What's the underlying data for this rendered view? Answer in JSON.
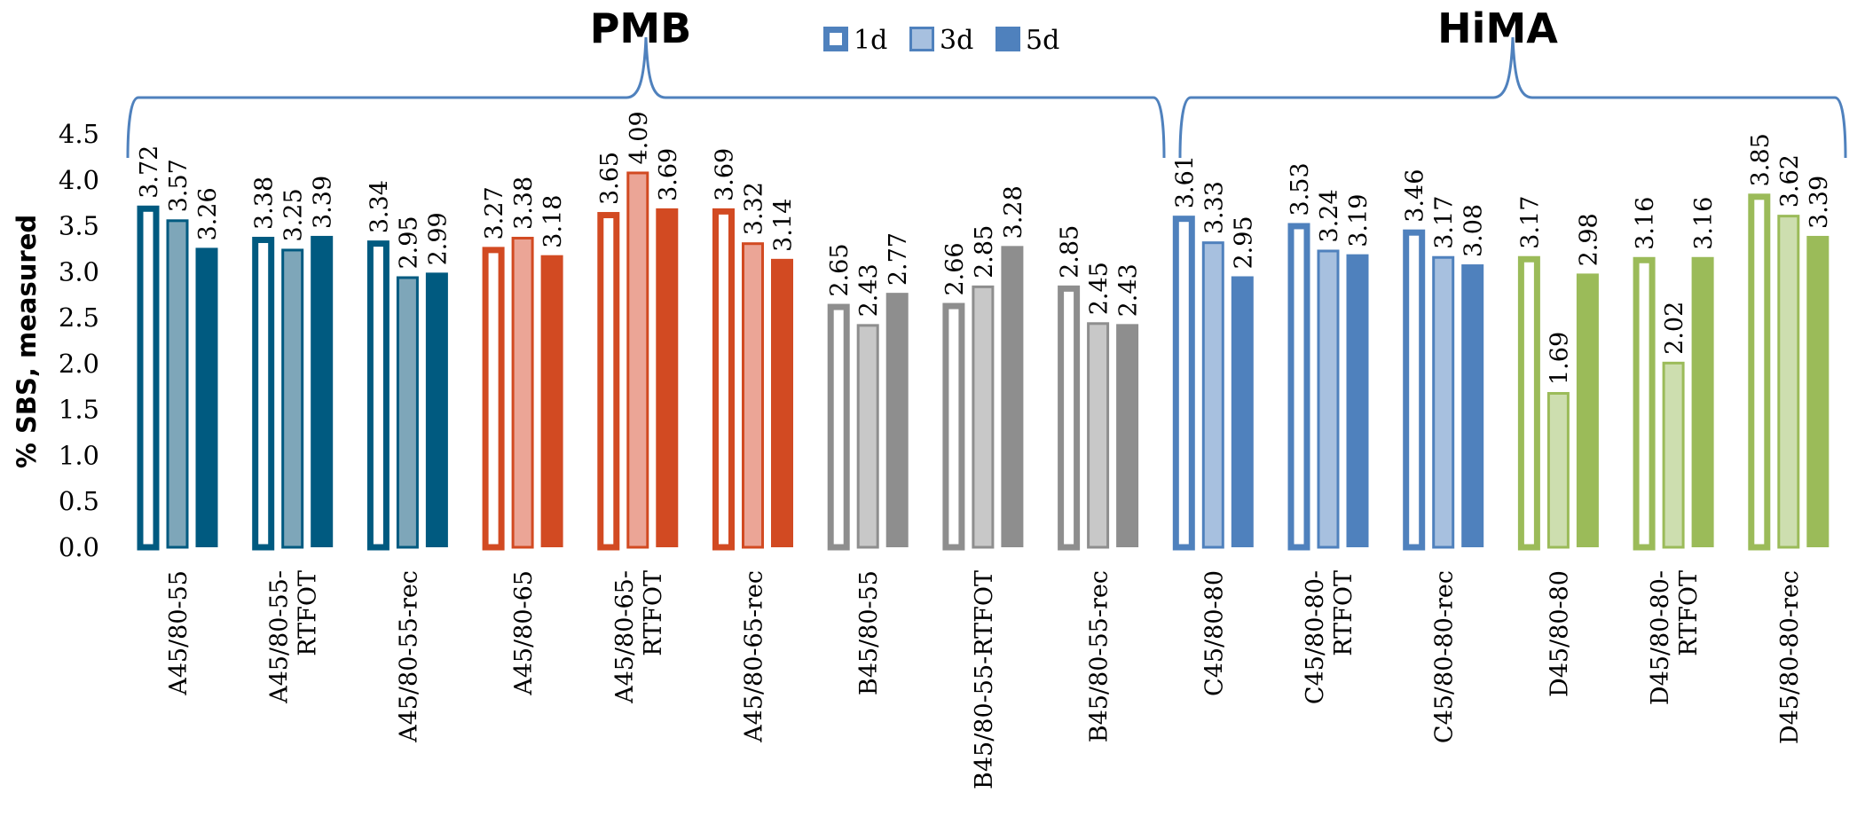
{
  "chart_data": {
    "type": "bar",
    "ylabel": "% SBS, measured",
    "ylim": [
      0,
      4.5
    ],
    "yticks": [
      "0.0",
      "0.5",
      "1.0",
      "1.5",
      "2.0",
      "2.5",
      "3.0",
      "3.5",
      "4.0",
      "4.5"
    ],
    "legend": {
      "position": "top-center",
      "entries": [
        "1d",
        "3d",
        "5d"
      ]
    },
    "groups": [
      {
        "label": "PMB",
        "from": 0,
        "to": 8
      },
      {
        "label": "HiMA",
        "from": 9,
        "to": 14
      }
    ],
    "categories": [
      [
        "A45/80-55"
      ],
      [
        "A45/80-55-",
        "RTFOT"
      ],
      [
        "A45/80-55-rec"
      ],
      [
        "A45/80-65"
      ],
      [
        "A45/80-65-",
        "RTFOT"
      ],
      [
        "A45/80-65-rec"
      ],
      [
        "B45/80-55"
      ],
      [
        "B45/80-55-RTFOT"
      ],
      [
        "B45/80-55-rec"
      ],
      [
        "C45/80-80"
      ],
      [
        "C45/80-80-",
        "RTFOT"
      ],
      [
        "C45/80-80-rec"
      ],
      [
        "D45/80-80"
      ],
      [
        "D45/80-80-",
        "RTFOT"
      ],
      [
        "D45/80-80-rec"
      ]
    ],
    "series": [
      {
        "name": "1d",
        "values": [
          3.72,
          3.38,
          3.34,
          3.27,
          3.65,
          3.69,
          2.65,
          2.66,
          2.85,
          3.61,
          3.53,
          3.46,
          3.17,
          3.16,
          3.85
        ]
      },
      {
        "name": "3d",
        "values": [
          3.57,
          3.25,
          2.95,
          3.38,
          4.09,
          3.32,
          2.43,
          2.85,
          2.45,
          3.33,
          3.24,
          3.17,
          1.69,
          2.02,
          3.62
        ]
      },
      {
        "name": "5d",
        "values": [
          3.26,
          3.39,
          2.99,
          3.18,
          3.69,
          3.14,
          2.77,
          3.28,
          2.43,
          2.95,
          3.19,
          3.08,
          2.98,
          3.16,
          3.39
        ]
      }
    ],
    "colors": {
      "group_palettes": [
        {
          "dark": "#005a80",
          "light": "#7ea6b9"
        },
        {
          "dark": "#d24a22",
          "light": "#eba596"
        },
        {
          "dark": "#8e8e8e",
          "light": "#c8c8c8"
        },
        {
          "dark": "#4f81bd",
          "light": "#a7c0df"
        },
        {
          "dark": "#9bbb59",
          "light": "#cddeaf"
        }
      ],
      "legend": {
        "dark": "#4f81bd",
        "light": "#a7c0df"
      },
      "brace": "#4f81bd"
    }
  }
}
